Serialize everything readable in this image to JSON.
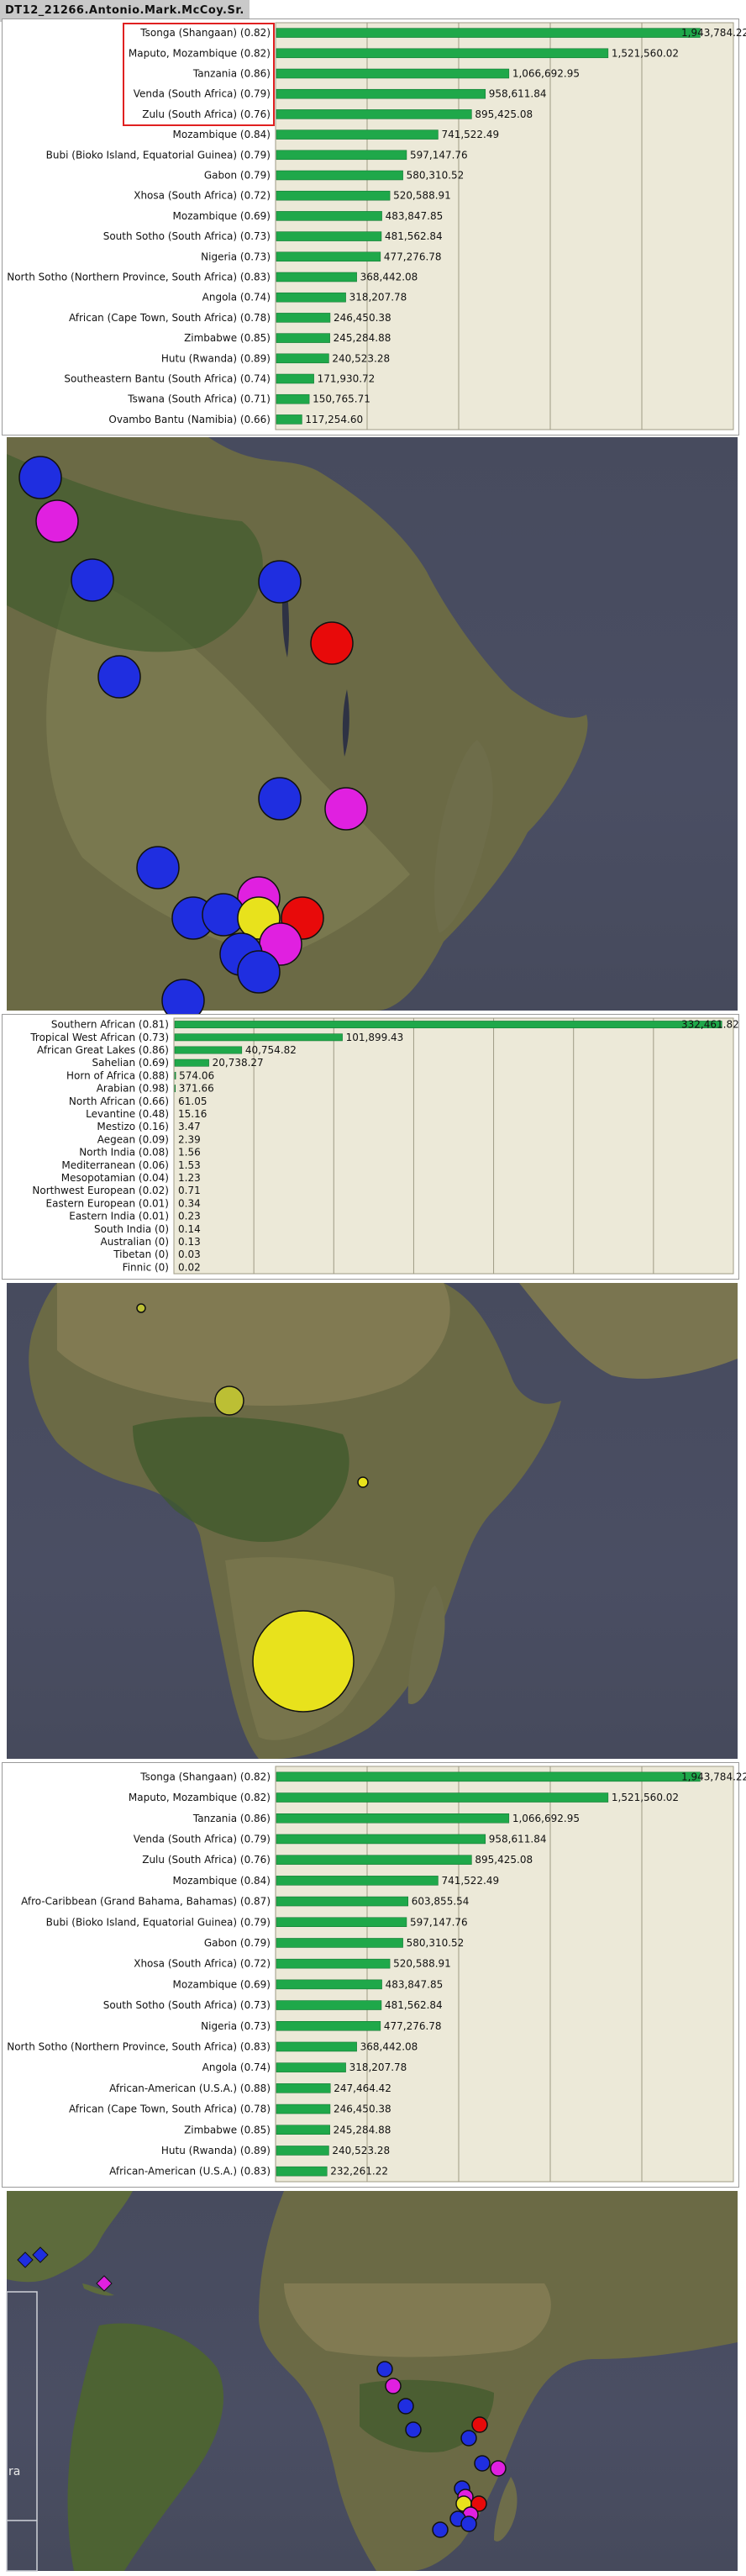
{
  "title": "DT12_21266.Antonio.Mark.McCoy.Sr.",
  "colors": {
    "bar": "#1fa84a",
    "plot_bg": "#ece9d8",
    "map_ocean": "#474b5e",
    "land": "#5f6b3e",
    "marker_blue": "#1f2ee0",
    "marker_magenta": "#e020e0",
    "marker_red": "#e80a0a",
    "marker_yellow": "#e8e21c",
    "marker_olive": "#bcbf34",
    "highlight": "#e02020"
  },
  "chart_data": [
    {
      "type": "bar",
      "orientation": "horizontal",
      "categories": [
        "Tsonga (Shangaan) (0.82)",
        "Maputo, Mozambique (0.82)",
        "Tanzania (0.86)",
        "Venda (South Africa) (0.79)",
        "Zulu (South Africa) (0.76)",
        "Mozambique (0.84)",
        "Bubi (Bioko Island, Equatorial Guinea) (0.79)",
        "Gabon (0.79)",
        "Xhosa (South Africa) (0.72)",
        "Mozambique (0.69)",
        "South Sotho (South Africa) (0.73)",
        "Nigeria (0.73)",
        "North Sotho (Northern Province, South Africa) (0.83)",
        "Angola (0.74)",
        "African (Cape Town, South Africa) (0.78)",
        "Zimbabwe (0.85)",
        "Hutu (Rwanda) (0.89)",
        "Southeastern Bantu (South Africa) (0.74)",
        "Tswana (South Africa) (0.71)",
        "Ovambo Bantu (Namibia) (0.66)"
      ],
      "values": [
        1943784.22,
        1521560.02,
        1066692.95,
        958611.84,
        895425.08,
        741522.49,
        597147.76,
        580310.52,
        520588.91,
        483847.85,
        481562.84,
        477276.78,
        368442.08,
        318207.78,
        246450.38,
        245284.88,
        240523.28,
        171930.72,
        150765.71,
        117254.6
      ],
      "value_labels": [
        "1,943,784.22",
        "1,521,560.02",
        "1,066,692.95",
        "958,611.84",
        "895,425.08",
        "741,522.49",
        "597,147.76",
        "580,310.52",
        "520,588.91",
        "483,847.85",
        "481,562.84",
        "477,276.78",
        "368,442.08",
        "318,207.78",
        "246,450.38",
        "245,284.88",
        "240,523.28",
        "171,930.72",
        "150,765.71",
        "117,254.60"
      ],
      "xlim": [
        0,
        2100000
      ],
      "grid_lines": 4,
      "highlighted_categories": 5
    },
    {
      "type": "bar",
      "orientation": "horizontal",
      "categories": [
        "Southern African (0.81)",
        "Tropical West African (0.73)",
        "African Great Lakes (0.86)",
        "Sahelian (0.69)",
        "Horn of Africa (0.88)",
        "Arabian (0.98)",
        "North African (0.66)",
        "Levantine (0.48)",
        "Mestizo (0.16)",
        "Aegean (0.09)",
        "North India (0.08)",
        "Mediterranean (0.06)",
        "Mesopotamian (0.04)",
        "Northwest European (0.02)",
        "Eastern European (0.01)",
        "Eastern India (0.01)",
        "South India (0)",
        "Australian (0)",
        "Tibetan (0)",
        "Finnic (0)"
      ],
      "values": [
        332461.82,
        101899.43,
        40754.82,
        20738.27,
        574.06,
        371.66,
        61.05,
        15.16,
        3.47,
        2.39,
        1.56,
        1.53,
        1.23,
        0.71,
        0.34,
        0.23,
        0.14,
        0.13,
        0.03,
        0.02
      ],
      "value_labels": [
        "332,461.82",
        "101,899.43",
        "40,754.82",
        "20,738.27",
        "574.06",
        "371.66",
        "61.05",
        "15.16",
        "3.47",
        "2.39",
        "1.56",
        "1.53",
        "1.23",
        "0.71",
        "0.34",
        "0.23",
        "0.14",
        "0.13",
        "0.03",
        "0.02"
      ],
      "xlim": [
        0,
        340000
      ],
      "grid_lines": 6
    },
    {
      "type": "bar",
      "orientation": "horizontal",
      "categories": [
        "Tsonga (Shangaan) (0.82)",
        "Maputo, Mozambique (0.82)",
        "Tanzania (0.86)",
        "Venda (South Africa) (0.79)",
        "Zulu (South Africa) (0.76)",
        "Mozambique (0.84)",
        "Afro-Caribbean (Grand Bahama, Bahamas) (0.87)",
        "Bubi (Bioko Island, Equatorial Guinea) (0.79)",
        "Gabon (0.79)",
        "Xhosa (South Africa) (0.72)",
        "Mozambique (0.69)",
        "South Sotho (South Africa) (0.73)",
        "Nigeria (0.73)",
        "North Sotho (Northern Province, South Africa) (0.83)",
        "Angola (0.74)",
        "African-American (U.S.A.) (0.88)",
        "African (Cape Town, South Africa) (0.78)",
        "Zimbabwe (0.85)",
        "Hutu (Rwanda) (0.89)",
        "African-American (U.S.A.) (0.83)"
      ],
      "values": [
        1943784.22,
        1521560.02,
        1066692.95,
        958611.84,
        895425.08,
        741522.49,
        603855.54,
        597147.76,
        580310.52,
        520588.91,
        483847.85,
        481562.84,
        477276.78,
        368442.08,
        318207.78,
        247464.42,
        246450.38,
        245284.88,
        240523.28,
        232261.22
      ],
      "value_labels": [
        "1,943,784.22",
        "1,521,560.02",
        "1,066,692.95",
        "958,611.84",
        "895,425.08",
        "741,522.49",
        "603,855.54",
        "597,147.76",
        "580,310.52",
        "520,588.91",
        "483,847.85",
        "481,562.84",
        "477,276.78",
        "368,442.08",
        "318,207.78",
        "247,464.42",
        "246,450.38",
        "245,284.88",
        "240,523.28",
        "232,261.22"
      ],
      "xlim": [
        0,
        2100000
      ],
      "grid_lines": 4
    }
  ],
  "maps": {
    "map1": {
      "region": "southern Africa",
      "markers": [
        {
          "color": "blue",
          "size": "medium"
        },
        {
          "color": "magenta",
          "size": "medium"
        },
        {
          "color": "blue",
          "size": "medium"
        },
        {
          "color": "blue",
          "size": "medium"
        },
        {
          "color": "red",
          "size": "medium"
        },
        {
          "color": "blue",
          "size": "medium"
        },
        {
          "color": "blue",
          "size": "medium"
        },
        {
          "color": "magenta",
          "size": "medium"
        },
        {
          "color": "blue",
          "size": "medium"
        },
        {
          "color": "magenta",
          "size": "medium"
        },
        {
          "color": "blue",
          "size": "medium"
        },
        {
          "color": "blue",
          "size": "medium"
        },
        {
          "color": "yellow",
          "size": "medium"
        },
        {
          "color": "red",
          "size": "medium"
        },
        {
          "color": "magenta",
          "size": "medium"
        },
        {
          "color": "blue",
          "size": "medium"
        },
        {
          "color": "blue",
          "size": "medium"
        },
        {
          "color": "blue",
          "size": "medium"
        }
      ]
    },
    "map2": {
      "region": "Africa",
      "markers": [
        {
          "color": "olive",
          "size": "tiny"
        },
        {
          "color": "olive",
          "size": "small"
        },
        {
          "color": "yellow",
          "size": "tiny"
        },
        {
          "color": "yellow",
          "size": "large"
        }
      ]
    },
    "map3": {
      "region": "Atlantic and Africa",
      "partial_label": "ra",
      "markers": [
        {
          "color": "blue",
          "shape": "diamond"
        },
        {
          "color": "blue",
          "shape": "diamond"
        },
        {
          "color": "magenta",
          "shape": "diamond"
        },
        {
          "color": "blue",
          "shape": "circle"
        },
        {
          "color": "magenta",
          "shape": "circle"
        },
        {
          "color": "blue",
          "shape": "circle"
        },
        {
          "color": "blue",
          "shape": "circle"
        },
        {
          "color": "red",
          "shape": "circle"
        },
        {
          "color": "blue",
          "shape": "circle"
        },
        {
          "color": "blue",
          "shape": "circle"
        },
        {
          "color": "magenta",
          "shape": "circle"
        },
        {
          "color": "blue",
          "shape": "circle"
        },
        {
          "color": "magenta",
          "shape": "circle"
        },
        {
          "color": "yellow",
          "shape": "circle"
        },
        {
          "color": "red",
          "shape": "circle"
        },
        {
          "color": "magenta",
          "shape": "circle"
        },
        {
          "color": "blue",
          "shape": "circle"
        },
        {
          "color": "blue",
          "shape": "circle"
        },
        {
          "color": "blue",
          "shape": "circle"
        }
      ]
    }
  }
}
